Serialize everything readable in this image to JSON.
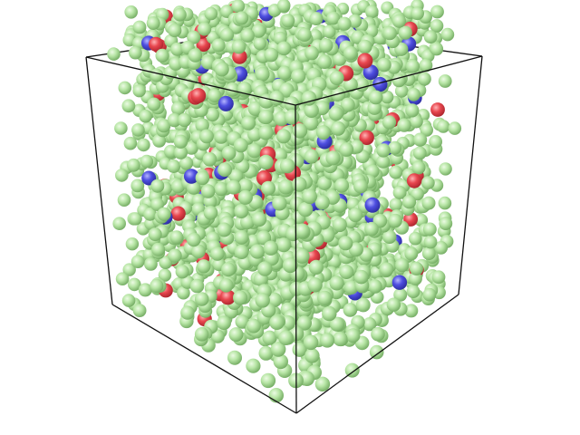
{
  "scene": {
    "background_color": "#ffffff",
    "box_edge_color": "#111111",
    "particle_types": [
      {
        "name": "green",
        "color": "#b8e6a6",
        "highlight": "#ecfbe4",
        "shadow": "#6fa85e"
      },
      {
        "name": "red",
        "color": "#e8474f",
        "highlight": "#ffb3b5",
        "shadow": "#a8232b"
      },
      {
        "name": "blue",
        "color": "#4f4fe0",
        "highlight": "#b5b5ff",
        "shadow": "#2a2a9c"
      }
    ]
  }
}
